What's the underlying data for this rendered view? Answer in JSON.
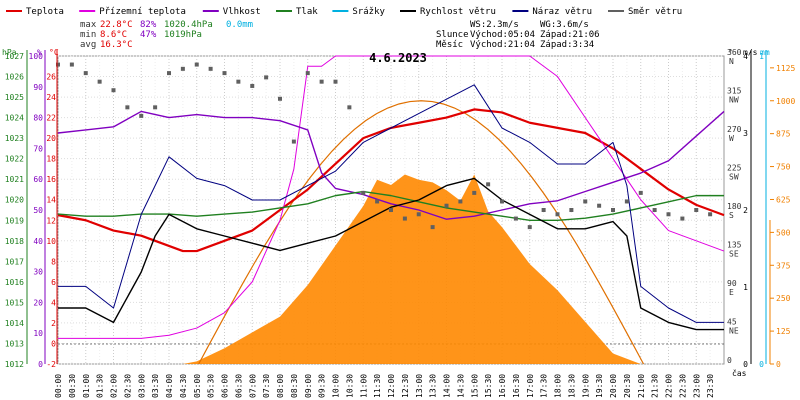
{
  "chart_data": {
    "type": "line",
    "title": "4.6.2023",
    "legend": [
      {
        "label": "Teplota",
        "color": "#e00000"
      },
      {
        "label": "Přízemní teplota",
        "color": "#e000e0"
      },
      {
        "label": "Vlhkost",
        "color": "#8000c0"
      },
      {
        "label": "Tlak",
        "color": "#208020"
      },
      {
        "label": "Srážky",
        "color": "#00b0e0"
      },
      {
        "label": "Rychlost větru",
        "color": "#000000"
      },
      {
        "label": "Náraz větru",
        "color": "#000080"
      },
      {
        "label": "Směr větru",
        "color": "#606060"
      }
    ],
    "stats": {
      "max": {
        "label": "max",
        "temp": "22.8°C",
        "hum": "82%",
        "press": "1020.4hPa",
        "rain": "0.0mm"
      },
      "min": {
        "label": "min",
        "temp": "8.6°C",
        "hum": "47%",
        "press": "1019hPa"
      },
      "avg": {
        "label": "avg",
        "temp": "16.3°C"
      }
    },
    "wind_info": {
      "ws": "WS:2.3m/s",
      "wg": "WG:3.6m/s"
    },
    "sun": {
      "label": "Slunce",
      "rise": "Východ:05:04",
      "set": "Západ:21:06"
    },
    "moon": {
      "label": "Měsíc",
      "rise": "Východ:21:04",
      "set": "Západ:3:34"
    },
    "axes": {
      "hpa": {
        "unit": "hPa",
        "color": "#208020",
        "ticks": [
          "1027",
          "1026",
          "1025",
          "1024",
          "1023",
          "1022",
          "1021",
          "1020",
          "1019",
          "1018",
          "1017",
          "1016",
          "1015",
          "1014",
          "1013",
          "1012"
        ],
        "range": [
          1012,
          1027
        ]
      },
      "pct": {
        "unit": "%",
        "color": "#8000c0",
        "ticks": [
          "100",
          "90",
          "80",
          "70",
          "60",
          "50",
          "40",
          "30",
          "20",
          "10",
          "0"
        ],
        "range": [
          0,
          100
        ]
      },
      "temp": {
        "unit": "°C",
        "color": "#e00000",
        "ticks": [
          "26",
          "24",
          "22",
          "20",
          "18",
          "16",
          "14",
          "12",
          "10",
          "8",
          "6",
          "4",
          "2",
          "0",
          "-2"
        ],
        "range": [
          -2,
          28
        ]
      },
      "dir": {
        "unit": "°",
        "ticks": [
          {
            "deg": "360",
            "dir": "N"
          },
          {
            "deg": "315",
            "dir": "NW"
          },
          {
            "deg": "270",
            "dir": "W"
          },
          {
            "deg": "225",
            "dir": "SW"
          },
          {
            "deg": "180",
            "dir": "S"
          },
          {
            "deg": "135",
            "dir": "SE"
          },
          {
            "deg": "90",
            "dir": "E"
          },
          {
            "deg": "45",
            "dir": "NE"
          },
          {
            "deg": "0",
            "dir": ""
          }
        ],
        "range": [
          0,
          360
        ]
      },
      "ms": {
        "unit": "m/s",
        "ticks": [
          "4",
          "3",
          "2",
          "1",
          "0"
        ],
        "range": [
          0,
          4
        ]
      },
      "mm": {
        "unit": "mm",
        "color": "#00b0e0",
        "ticks": [
          "1",
          "0"
        ],
        "range": [
          0,
          1
        ]
      },
      "wm2": {
        "color": "#f08000",
        "ticks": [
          "1125",
          "1000",
          "875",
          "750",
          "625",
          "500",
          "375",
          "250",
          "125",
          "0"
        ],
        "range": [
          0,
          1170
        ]
      },
      "time": {
        "label": "čas",
        "ticks": [
          "00:00",
          "00:30",
          "01:00",
          "01:30",
          "02:00",
          "02:30",
          "03:00",
          "03:30",
          "04:00",
          "04:30",
          "05:00",
          "05:30",
          "06:00",
          "06:30",
          "07:00",
          "07:30",
          "08:00",
          "08:30",
          "09:00",
          "09:30",
          "10:00",
          "10:30",
          "11:00",
          "11:30",
          "12:00",
          "12:30",
          "13:00",
          "13:30",
          "14:00",
          "14:30",
          "15:00",
          "15:30",
          "16:00",
          "16:30",
          "17:00",
          "17:30",
          "18:00",
          "18:30",
          "19:00",
          "19:30",
          "20:00",
          "20:30",
          "21:00",
          "21:30",
          "22:00",
          "22:30",
          "23:00",
          "23:30"
        ]
      }
    },
    "series": [
      {
        "name": "Teplota",
        "color": "#e00000",
        "hours": [
          0,
          1,
          2,
          3,
          4,
          4.5,
          5,
          6,
          7,
          8,
          9,
          10,
          11,
          12,
          13,
          14,
          15,
          16,
          17,
          18,
          19,
          20,
          21,
          22,
          23,
          24
        ],
        "values": [
          12.5,
          12,
          11,
          10.5,
          9.5,
          9,
          9,
          10,
          11,
          13,
          15,
          17.5,
          20,
          21,
          21.5,
          22,
          22.8,
          22.5,
          21.5,
          21,
          20.5,
          19,
          17,
          15,
          13.5,
          12.5
        ]
      },
      {
        "name": "Přízemní teplota",
        "color": "#e000e0",
        "hours": [
          0,
          1,
          2,
          3,
          4,
          5,
          6,
          7,
          8,
          8.5,
          9,
          9.5,
          10,
          10.5,
          11,
          12,
          13,
          14,
          15,
          16,
          17,
          18,
          19,
          20,
          21,
          22,
          23,
          24
        ],
        "values": [
          0.5,
          0.5,
          0.5,
          0.5,
          0.8,
          1.5,
          3,
          6,
          12,
          17,
          27,
          27,
          28,
          28,
          28,
          28,
          28,
          28,
          28,
          28,
          28,
          26,
          22,
          18,
          14,
          11,
          10,
          9
        ]
      },
      {
        "name": "Vlhkost",
        "color": "#8000c0",
        "hours": [
          0,
          1,
          2,
          3,
          4,
          5,
          6,
          7,
          8,
          9,
          9.5,
          10,
          11,
          12,
          13,
          14,
          15,
          16,
          17,
          18,
          19,
          20,
          21,
          22,
          23,
          24
        ],
        "values": [
          75,
          76,
          77,
          82,
          80,
          81,
          80,
          80,
          79,
          76,
          62,
          57,
          55,
          52,
          50,
          47,
          48,
          50,
          52,
          53,
          56,
          59,
          62,
          66,
          74,
          82
        ]
      },
      {
        "name": "Tlak",
        "color": "#208020",
        "hours": [
          0,
          1,
          2,
          3,
          4,
          5,
          6,
          7,
          8,
          9,
          10,
          11,
          12,
          13,
          14,
          15,
          16,
          17,
          18,
          19,
          20,
          21,
          22,
          23,
          24
        ],
        "values": [
          1019.3,
          1019.2,
          1019.2,
          1019.3,
          1019.3,
          1019.2,
          1019.3,
          1019.4,
          1019.6,
          1019.8,
          1020.2,
          1020.4,
          1020.2,
          1019.9,
          1019.6,
          1019.4,
          1019.2,
          1019.0,
          1019.0,
          1019.1,
          1019.3,
          1019.6,
          1019.9,
          1020.2,
          1020.2
        ]
      },
      {
        "name": "Rychlost větru",
        "color": "#000000",
        "hours": [
          0,
          1,
          2,
          3,
          3.5,
          4,
          5,
          6,
          7,
          8,
          9,
          10,
          11,
          12,
          13,
          14,
          15,
          16,
          17,
          18,
          19,
          20,
          20.5,
          21,
          22,
          23,
          24
        ],
        "values": [
          0.5,
          0.5,
          0.3,
          1,
          1.5,
          1.8,
          1.6,
          1.5,
          1.4,
          1.3,
          1.4,
          1.5,
          1.7,
          1.9,
          2.0,
          2.2,
          2.3,
          2.0,
          1.8,
          1.6,
          1.6,
          1.7,
          1.5,
          0.5,
          0.3,
          0.2,
          0.2
        ]
      },
      {
        "name": "Náraz větru",
        "color": "#000080",
        "hours": [
          0,
          1,
          2,
          3,
          3.5,
          4,
          5,
          6,
          7,
          8,
          9,
          10,
          11,
          12,
          13,
          14,
          15,
          16,
          17,
          18,
          19,
          20,
          20.5,
          21,
          22,
          23,
          24
        ],
        "values": [
          0.8,
          0.8,
          0.5,
          1.8,
          2.2,
          2.6,
          2.3,
          2.2,
          2.0,
          2.0,
          2.2,
          2.4,
          2.8,
          3.0,
          3.2,
          3.4,
          3.6,
          3.0,
          2.8,
          2.5,
          2.5,
          2.8,
          2.2,
          0.8,
          0.5,
          0.3,
          0.3
        ]
      }
    ],
    "wind_direction": {
      "hours": [
        0,
        0.5,
        1,
        1.5,
        2,
        2.5,
        3,
        3.5,
        4,
        4.5,
        5,
        5.5,
        6,
        6.5,
        7,
        7.5,
        8,
        8.5,
        9,
        9.5,
        10,
        10.5,
        11,
        11.5,
        12,
        12.5,
        13,
        13.5,
        14,
        14.5,
        15,
        15.5,
        16,
        16.5,
        17,
        17.5,
        18,
        18.5,
        19,
        19.5,
        20,
        20.5,
        21,
        21.5,
        22,
        22.5,
        23,
        23.5
      ],
      "values": [
        350,
        350,
        340,
        330,
        320,
        300,
        290,
        300,
        340,
        345,
        350,
        345,
        340,
        330,
        325,
        335,
        310,
        260,
        340,
        330,
        330,
        300,
        200,
        190,
        180,
        170,
        175,
        160,
        185,
        190,
        200,
        210,
        190,
        170,
        160,
        180,
        175,
        180,
        190,
        185,
        180,
        190,
        200,
        180,
        175,
        170,
        180,
        175
      ]
    },
    "radiation": {
      "hours": [
        4.5,
        5,
        6,
        7,
        8,
        9,
        10,
        11,
        11.5,
        12,
        12.5,
        13,
        13.5,
        14,
        14.5,
        15,
        15.5,
        16,
        16.5,
        17,
        18,
        19,
        20,
        21
      ],
      "values": [
        0,
        10,
        60,
        120,
        180,
        300,
        450,
        600,
        700,
        680,
        720,
        700,
        690,
        660,
        620,
        720,
        580,
        520,
        450,
        380,
        280,
        160,
        40,
        0
      ]
    },
    "clear_sky": {
      "peak": 1000,
      "start": 5.07,
      "end": 21.1
    }
  }
}
